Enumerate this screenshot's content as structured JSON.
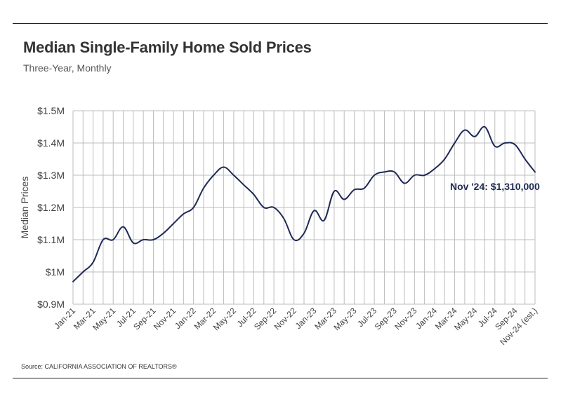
{
  "header": {
    "title": "Median Single-Family Home Sold Prices",
    "subtitle": "Three-Year, Monthly"
  },
  "footer": {
    "source": "Source:  CALIFORNIA ASSOCIATION OF REALTORS®"
  },
  "colors": {
    "line": "#1f2a56",
    "grid": "#bdbdbd",
    "annotation": "#1f2a56"
  },
  "chart_data": {
    "type": "line",
    "ylabel": "Median Prices",
    "ylim": [
      900000,
      1500000
    ],
    "y_ticks": [
      {
        "value": 1500000,
        "label": "$1.5M"
      },
      {
        "value": 1400000,
        "label": "$1.4M"
      },
      {
        "value": 1300000,
        "label": "$1.3M"
      },
      {
        "value": 1200000,
        "label": "$1.2M"
      },
      {
        "value": 1100000,
        "label": "$1.1M"
      },
      {
        "value": 1000000,
        "label": "$1M"
      },
      {
        "value": 900000,
        "label": "$0.9M"
      }
    ],
    "x_tick_labels": [
      "Jan-21",
      "Mar-21",
      "May-21",
      "Jul-21",
      "Sep-21",
      "Nov-21",
      "Jan-22",
      "Mar-22",
      "May-22",
      "Jul-22",
      "Sep-22",
      "Nov-22",
      "Jan-23",
      "Mar-23",
      "May-23",
      "Jul-23",
      "Sep-23",
      "Nov-23",
      "Jan-24",
      "Mar-24",
      "May-24",
      "Jul-24",
      "Sep-24",
      "Nov-24 (est.)"
    ],
    "grid": true,
    "x": [
      "Jan-21",
      "Feb-21",
      "Mar-21",
      "Apr-21",
      "May-21",
      "Jun-21",
      "Jul-21",
      "Aug-21",
      "Sep-21",
      "Oct-21",
      "Nov-21",
      "Dec-21",
      "Jan-22",
      "Feb-22",
      "Mar-22",
      "Apr-22",
      "May-22",
      "Jun-22",
      "Jul-22",
      "Aug-22",
      "Sep-22",
      "Oct-22",
      "Nov-22",
      "Dec-22",
      "Jan-23",
      "Feb-23",
      "Mar-23",
      "Apr-23",
      "May-23",
      "Jun-23",
      "Jul-23",
      "Aug-23",
      "Sep-23",
      "Oct-23",
      "Nov-23",
      "Dec-23",
      "Jan-24",
      "Feb-24",
      "Mar-24",
      "Apr-24",
      "May-24",
      "Jun-24",
      "Jul-24",
      "Aug-24",
      "Sep-24",
      "Oct-24",
      "Nov-24 (est.)"
    ],
    "values": [
      970000,
      1000000,
      1030000,
      1100000,
      1100000,
      1140000,
      1090000,
      1100000,
      1100000,
      1120000,
      1150000,
      1180000,
      1200000,
      1260000,
      1300000,
      1325000,
      1300000,
      1270000,
      1240000,
      1200000,
      1200000,
      1165000,
      1100000,
      1120000,
      1190000,
      1160000,
      1250000,
      1225000,
      1255000,
      1260000,
      1300000,
      1310000,
      1310000,
      1275000,
      1300000,
      1300000,
      1320000,
      1350000,
      1400000,
      1440000,
      1420000,
      1450000,
      1390000,
      1400000,
      1395000,
      1350000,
      1310000
    ],
    "annotation": "Nov '24: $1,310,000"
  }
}
